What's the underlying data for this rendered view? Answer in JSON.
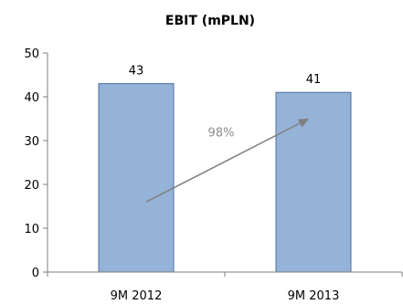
{
  "chart_data": {
    "type": "bar",
    "title": "EBIT (mPLN)",
    "categories": [
      "9M 2012",
      "9M 2013"
    ],
    "values": [
      43,
      41
    ],
    "data_labels": [
      "43",
      "41"
    ],
    "ylim": [
      0,
      50
    ],
    "yticks": [
      0,
      10,
      20,
      30,
      40,
      50
    ],
    "ytick_labels": [
      "0",
      "10",
      "20",
      "30",
      "40",
      "50"
    ],
    "xlabel": "",
    "ylabel": "",
    "grid": false,
    "legend": "none",
    "annotation": {
      "text": "98%"
    },
    "colors": {
      "bar_fill": "#95b3d7",
      "bar_stroke": "#4a6fa5",
      "arrow": "#7f7f7f",
      "axis": "#7f7f7f"
    }
  }
}
